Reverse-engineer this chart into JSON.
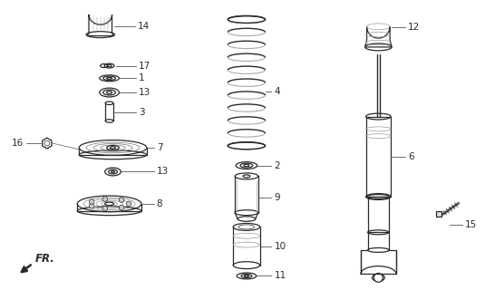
{
  "background_color": "#ffffff",
  "line_color": "#2a2a2a",
  "gray": "#888888",
  "darkgray": "#555555",
  "lightgray": "#cccccc"
}
